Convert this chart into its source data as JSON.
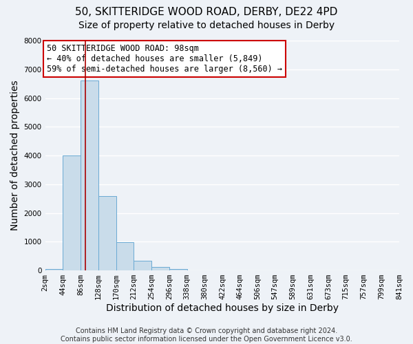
{
  "title": "50, SKITTERIDGE WOOD ROAD, DERBY, DE22 4PD",
  "subtitle": "Size of property relative to detached houses in Derby",
  "xlabel": "Distribution of detached houses by size in Derby",
  "ylabel": "Number of detached properties",
  "footer_line1": "Contains HM Land Registry data © Crown copyright and database right 2024.",
  "footer_line2": "Contains public sector information licensed under the Open Government Licence v3.0.",
  "bin_edges": [
    2,
    44,
    86,
    128,
    170,
    212,
    254,
    296,
    338,
    380,
    422,
    464,
    506,
    547,
    589,
    631,
    673,
    715,
    757,
    799,
    841
  ],
  "bin_labels": [
    "2sqm",
    "44sqm",
    "86sqm",
    "128sqm",
    "170sqm",
    "212sqm",
    "254sqm",
    "296sqm",
    "338sqm",
    "380sqm",
    "422sqm",
    "464sqm",
    "506sqm",
    "547sqm",
    "589sqm",
    "631sqm",
    "673sqm",
    "715sqm",
    "757sqm",
    "799sqm",
    "841sqm"
  ],
  "bar_heights": [
    50,
    4000,
    6600,
    2600,
    975,
    330,
    130,
    60,
    0,
    0,
    0,
    0,
    0,
    0,
    0,
    0,
    0,
    0,
    0,
    0
  ],
  "bar_color": "#c9dcea",
  "bar_edge_color": "#6aaad4",
  "annotation_title": "50 SKITTERIDGE WOOD ROAD: 98sqm",
  "annotation_line2": "← 40% of detached houses are smaller (5,849)",
  "annotation_line3": "59% of semi-detached houses are larger (8,560) →",
  "property_line_x": 98,
  "ylim": [
    0,
    8000
  ],
  "annotation_box_edge_color": "#cc0000",
  "vline_color": "#aa0000",
  "background_color": "#eef2f7",
  "plot_bg_color": "#eef2f7",
  "grid_color": "#ffffff",
  "title_fontsize": 11,
  "subtitle_fontsize": 10,
  "axis_label_fontsize": 10,
  "tick_fontsize": 7.5,
  "annotation_fontsize": 8.5,
  "footer_fontsize": 7
}
